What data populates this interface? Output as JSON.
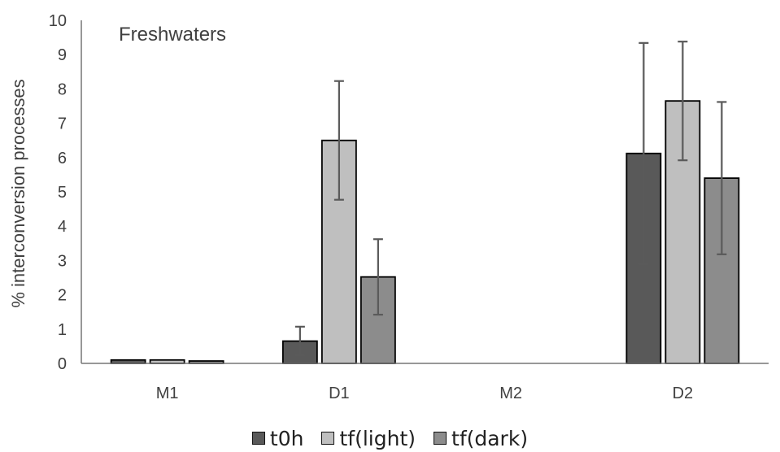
{
  "chart_data": {
    "type": "bar",
    "title": "Freshwaters",
    "ylabel": "% interconversion processes",
    "xlabel": "",
    "ylim": [
      0,
      10
    ],
    "yticks": [
      0,
      1,
      2,
      3,
      4,
      5,
      6,
      7,
      8,
      9,
      10
    ],
    "categories": [
      "M1",
      "D1",
      "M2",
      "D2"
    ],
    "series": [
      {
        "name": "t0h",
        "color": "#595959",
        "values": [
          0.1,
          0.65,
          0,
          6.12
        ],
        "errors": [
          0,
          0.42,
          0,
          3.22
        ]
      },
      {
        "name": "tf(light)",
        "color": "#bfbfbf",
        "values": [
          0.1,
          6.5,
          0,
          7.65
        ],
        "errors": [
          0,
          1.73,
          0,
          1.73
        ]
      },
      {
        "name": "tf(dark)",
        "color": "#8c8c8c",
        "values": [
          0.07,
          2.52,
          0,
          5.4
        ],
        "errors": [
          0,
          1.1,
          0,
          2.22
        ]
      }
    ],
    "grid": false,
    "legend_position": "bottom"
  }
}
